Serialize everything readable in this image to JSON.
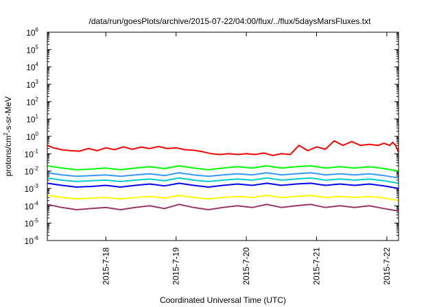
{
  "chart_data": {
    "type": "line",
    "title": "/data/run/goesPlots/archive/2015-07-22/04:00/flux/../flux/5daysMarsFluxes.txt",
    "xlabel": "Coordinated Universal Time (UTC)",
    "ylabel": {
      "prefix": "protons/cm",
      "superscript": "2",
      "suffix": "-s-sr-MeV"
    },
    "y_scale": "log",
    "ylim": [
      1e-06,
      1000000.0
    ],
    "y_ticks": [
      {
        "value": 1e-06,
        "base": "10",
        "exp": "-6"
      },
      {
        "value": 1e-05,
        "base": "10",
        "exp": "-5"
      },
      {
        "value": 0.0001,
        "base": "10",
        "exp": "-4"
      },
      {
        "value": 0.001,
        "base": "10",
        "exp": "-3"
      },
      {
        "value": 0.01,
        "base": "10",
        "exp": "-2"
      },
      {
        "value": 0.1,
        "base": "10",
        "exp": "-1"
      },
      {
        "value": 1,
        "base": "10",
        "exp": "0"
      },
      {
        "value": 10,
        "base": "10",
        "exp": "1"
      },
      {
        "value": 100,
        "base": "10",
        "exp": "2"
      },
      {
        "value": 1000,
        "base": "10",
        "exp": "3"
      },
      {
        "value": 10000,
        "base": "10",
        "exp": "4"
      },
      {
        "value": 100000,
        "base": "10",
        "exp": "5"
      },
      {
        "value": 1000000,
        "base": "10",
        "exp": "6"
      }
    ],
    "xlim": [
      "2015-07-17 04:00",
      "2015-07-22 04:00"
    ],
    "x_ticks": [
      {
        "value": "2015-07-18 00:00",
        "label": "2015-7-18"
      },
      {
        "value": "2015-07-19 00:00",
        "label": "2015-7-19"
      },
      {
        "value": "2015-07-20 00:00",
        "label": "2015-7-20"
      },
      {
        "value": "2015-07-21 00:00",
        "label": "2015-7-21"
      },
      {
        "value": "2015-07-22 00:00",
        "label": "2015-7-22"
      }
    ],
    "grid": false,
    "legend": "none",
    "series": [
      {
        "color": "#ff0000",
        "points": [
          [
            "2015-07-17 04:00",
            0.3
          ],
          [
            "2015-07-17 06:00",
            0.22
          ],
          [
            "2015-07-17 09:00",
            0.17
          ],
          [
            "2015-07-17 12:00",
            0.15
          ],
          [
            "2015-07-17 15:00",
            0.14
          ],
          [
            "2015-07-17 18:00",
            0.2
          ],
          [
            "2015-07-17 21:00",
            0.15
          ],
          [
            "2015-07-18 00:00",
            0.22
          ],
          [
            "2015-07-18 03:00",
            0.17
          ],
          [
            "2015-07-18 06:00",
            0.25
          ],
          [
            "2015-07-18 09:00",
            0.18
          ],
          [
            "2015-07-18 12:00",
            0.24
          ],
          [
            "2015-07-18 15:00",
            0.2
          ],
          [
            "2015-07-18 18:00",
            0.26
          ],
          [
            "2015-07-18 21:00",
            0.2
          ],
          [
            "2015-07-19 00:00",
            0.22
          ],
          [
            "2015-07-19 03:00",
            0.17
          ],
          [
            "2015-07-19 06:00",
            0.16
          ],
          [
            "2015-07-19 09:00",
            0.13
          ],
          [
            "2015-07-19 12:00",
            0.1
          ],
          [
            "2015-07-19 15:00",
            0.09
          ],
          [
            "2015-07-19 18:00",
            0.1
          ],
          [
            "2015-07-19 21:00",
            0.09
          ],
          [
            "2015-07-20 00:00",
            0.1
          ],
          [
            "2015-07-20 03:00",
            0.09
          ],
          [
            "2015-07-20 06:00",
            0.11
          ],
          [
            "2015-07-20 09:00",
            0.08
          ],
          [
            "2015-07-20 12:00",
            0.1
          ],
          [
            "2015-07-20 15:00",
            0.09
          ],
          [
            "2015-07-20 18:00",
            0.3
          ],
          [
            "2015-07-20 21:00",
            0.15
          ],
          [
            "2015-07-21 00:00",
            0.25
          ],
          [
            "2015-07-21 03:00",
            0.18
          ],
          [
            "2015-07-21 06:00",
            0.55
          ],
          [
            "2015-07-21 09:00",
            0.3
          ],
          [
            "2015-07-21 12:00",
            0.5
          ],
          [
            "2015-07-21 15:00",
            0.3
          ],
          [
            "2015-07-21 18:00",
            0.35
          ],
          [
            "2015-07-21 21:00",
            0.3
          ],
          [
            "2015-07-21 23:00",
            0.4
          ],
          [
            "2015-07-22 01:00",
            0.3
          ],
          [
            "2015-07-22 02:00",
            0.45
          ],
          [
            "2015-07-22 03:00",
            0.3
          ],
          [
            "2015-07-22 04:00",
            0.12
          ]
        ]
      },
      {
        "color": "#00ff00",
        "points": [
          [
            "2015-07-17 04:00",
            0.02
          ],
          [
            "2015-07-17 09:00",
            0.015
          ],
          [
            "2015-07-17 14:00",
            0.012
          ],
          [
            "2015-07-17 19:00",
            0.013
          ],
          [
            "2015-07-18 00:00",
            0.015
          ],
          [
            "2015-07-18 05:00",
            0.012
          ],
          [
            "2015-07-18 10:00",
            0.015
          ],
          [
            "2015-07-18 15:00",
            0.018
          ],
          [
            "2015-07-18 20:00",
            0.014
          ],
          [
            "2015-07-19 01:00",
            0.02
          ],
          [
            "2015-07-19 06:00",
            0.015
          ],
          [
            "2015-07-19 11:00",
            0.012
          ],
          [
            "2015-07-19 16:00",
            0.015
          ],
          [
            "2015-07-19 21:00",
            0.018
          ],
          [
            "2015-07-20 02:00",
            0.015
          ],
          [
            "2015-07-20 07:00",
            0.02
          ],
          [
            "2015-07-20 12:00",
            0.015
          ],
          [
            "2015-07-20 17:00",
            0.018
          ],
          [
            "2015-07-20 22:00",
            0.02
          ],
          [
            "2015-07-21 03:00",
            0.015
          ],
          [
            "2015-07-21 08:00",
            0.018
          ],
          [
            "2015-07-21 13:00",
            0.015
          ],
          [
            "2015-07-21 18:00",
            0.018
          ],
          [
            "2015-07-21 23:00",
            0.014
          ],
          [
            "2015-07-22 04:00",
            0.01
          ]
        ]
      },
      {
        "color": "#3399ff",
        "points": [
          [
            "2015-07-17 04:00",
            0.008
          ],
          [
            "2015-07-17 09:00",
            0.006
          ],
          [
            "2015-07-17 14:00",
            0.005
          ],
          [
            "2015-07-17 19:00",
            0.0055
          ],
          [
            "2015-07-18 00:00",
            0.006
          ],
          [
            "2015-07-18 05:00",
            0.005
          ],
          [
            "2015-07-18 10:00",
            0.006
          ],
          [
            "2015-07-18 15:00",
            0.007
          ],
          [
            "2015-07-18 20:00",
            0.0055
          ],
          [
            "2015-07-19 01:00",
            0.008
          ],
          [
            "2015-07-19 06:00",
            0.006
          ],
          [
            "2015-07-19 11:00",
            0.005
          ],
          [
            "2015-07-19 16:00",
            0.006
          ],
          [
            "2015-07-19 21:00",
            0.007
          ],
          [
            "2015-07-20 02:00",
            0.006
          ],
          [
            "2015-07-20 07:00",
            0.008
          ],
          [
            "2015-07-20 12:00",
            0.006
          ],
          [
            "2015-07-20 17:00",
            0.007
          ],
          [
            "2015-07-20 22:00",
            0.008
          ],
          [
            "2015-07-21 03:00",
            0.006
          ],
          [
            "2015-07-21 08:00",
            0.007
          ],
          [
            "2015-07-21 13:00",
            0.006
          ],
          [
            "2015-07-21 18:00",
            0.007
          ],
          [
            "2015-07-21 23:00",
            0.0055
          ],
          [
            "2015-07-22 04:00",
            0.004
          ]
        ]
      },
      {
        "color": "#00cccc",
        "points": [
          [
            "2015-07-17 04:00",
            0.004
          ],
          [
            "2015-07-17 09:00",
            0.003
          ],
          [
            "2015-07-17 14:00",
            0.0025
          ],
          [
            "2015-07-17 19:00",
            0.0028
          ],
          [
            "2015-07-18 00:00",
            0.003
          ],
          [
            "2015-07-18 05:00",
            0.0025
          ],
          [
            "2015-07-18 10:00",
            0.003
          ],
          [
            "2015-07-18 15:00",
            0.0035
          ],
          [
            "2015-07-18 20:00",
            0.0028
          ],
          [
            "2015-07-19 01:00",
            0.004
          ],
          [
            "2015-07-19 06:00",
            0.003
          ],
          [
            "2015-07-19 11:00",
            0.0025
          ],
          [
            "2015-07-19 16:00",
            0.003
          ],
          [
            "2015-07-19 21:00",
            0.0035
          ],
          [
            "2015-07-20 02:00",
            0.003
          ],
          [
            "2015-07-20 07:00",
            0.004
          ],
          [
            "2015-07-20 12:00",
            0.003
          ],
          [
            "2015-07-20 17:00",
            0.0035
          ],
          [
            "2015-07-20 22:00",
            0.004
          ],
          [
            "2015-07-21 03:00",
            0.003
          ],
          [
            "2015-07-21 08:00",
            0.0035
          ],
          [
            "2015-07-21 13:00",
            0.003
          ],
          [
            "2015-07-21 18:00",
            0.0035
          ],
          [
            "2015-07-21 23:00",
            0.0028
          ],
          [
            "2015-07-22 04:00",
            0.002
          ]
        ]
      },
      {
        "color": "#0000ff",
        "points": [
          [
            "2015-07-17 04:00",
            0.002
          ],
          [
            "2015-07-17 09:00",
            0.0015
          ],
          [
            "2015-07-17 14:00",
            0.0012
          ],
          [
            "2015-07-17 19:00",
            0.0013
          ],
          [
            "2015-07-18 00:00",
            0.0015
          ],
          [
            "2015-07-18 05:00",
            0.0012
          ],
          [
            "2015-07-18 10:00",
            0.0015
          ],
          [
            "2015-07-18 15:00",
            0.0018
          ],
          [
            "2015-07-18 20:00",
            0.0014
          ],
          [
            "2015-07-19 01:00",
            0.002
          ],
          [
            "2015-07-19 06:00",
            0.0015
          ],
          [
            "2015-07-19 11:00",
            0.0012
          ],
          [
            "2015-07-19 16:00",
            0.0015
          ],
          [
            "2015-07-19 21:00",
            0.0018
          ],
          [
            "2015-07-20 02:00",
            0.0015
          ],
          [
            "2015-07-20 07:00",
            0.002
          ],
          [
            "2015-07-20 12:00",
            0.0015
          ],
          [
            "2015-07-20 17:00",
            0.0018
          ],
          [
            "2015-07-20 22:00",
            0.002
          ],
          [
            "2015-07-21 03:00",
            0.0015
          ],
          [
            "2015-07-21 08:00",
            0.0018
          ],
          [
            "2015-07-21 13:00",
            0.0015
          ],
          [
            "2015-07-21 18:00",
            0.0018
          ],
          [
            "2015-07-21 23:00",
            0.0014
          ],
          [
            "2015-07-22 04:00",
            0.001
          ]
        ]
      },
      {
        "color": "#ffff00",
        "points": [
          [
            "2015-07-17 04:00",
            0.0004
          ],
          [
            "2015-07-17 09:00",
            0.0003
          ],
          [
            "2015-07-17 14:00",
            0.00025
          ],
          [
            "2015-07-17 19:00",
            0.00028
          ],
          [
            "2015-07-18 00:00",
            0.0003
          ],
          [
            "2015-07-18 05:00",
            0.00025
          ],
          [
            "2015-07-18 10:00",
            0.0003
          ],
          [
            "2015-07-18 15:00",
            0.00035
          ],
          [
            "2015-07-18 20:00",
            0.00028
          ],
          [
            "2015-07-19 01:00",
            0.0004
          ],
          [
            "2015-07-19 06:00",
            0.0003
          ],
          [
            "2015-07-19 11:00",
            0.00025
          ],
          [
            "2015-07-19 16:00",
            0.0003
          ],
          [
            "2015-07-19 21:00",
            0.00035
          ],
          [
            "2015-07-20 02:00",
            0.0003
          ],
          [
            "2015-07-20 07:00",
            0.0004
          ],
          [
            "2015-07-20 12:00",
            0.0003
          ],
          [
            "2015-07-20 17:00",
            0.00035
          ],
          [
            "2015-07-20 22:00",
            0.0004
          ],
          [
            "2015-07-21 03:00",
            0.0003
          ],
          [
            "2015-07-21 08:00",
            0.00035
          ],
          [
            "2015-07-21 13:00",
            0.0003
          ],
          [
            "2015-07-21 18:00",
            0.00035
          ],
          [
            "2015-07-21 23:00",
            0.00028
          ],
          [
            "2015-07-22 04:00",
            0.0002
          ]
        ]
      },
      {
        "color": "#993366",
        "points": [
          [
            "2015-07-17 04:00",
            0.00012
          ],
          [
            "2015-07-17 09:00",
            8e-05
          ],
          [
            "2015-07-17 14:00",
            6e-05
          ],
          [
            "2015-07-17 19:00",
            7e-05
          ],
          [
            "2015-07-18 00:00",
            8e-05
          ],
          [
            "2015-07-18 05:00",
            6e-05
          ],
          [
            "2015-07-18 10:00",
            8e-05
          ],
          [
            "2015-07-18 15:00",
            0.0001
          ],
          [
            "2015-07-18 20:00",
            7e-05
          ],
          [
            "2015-07-19 01:00",
            0.00012
          ],
          [
            "2015-07-19 06:00",
            8e-05
          ],
          [
            "2015-07-19 11:00",
            6e-05
          ],
          [
            "2015-07-19 16:00",
            8e-05
          ],
          [
            "2015-07-19 21:00",
            0.0001
          ],
          [
            "2015-07-20 02:00",
            8e-05
          ],
          [
            "2015-07-20 07:00",
            0.00012
          ],
          [
            "2015-07-20 12:00",
            8e-05
          ],
          [
            "2015-07-20 17:00",
            0.0001
          ],
          [
            "2015-07-20 22:00",
            0.00012
          ],
          [
            "2015-07-21 03:00",
            8e-05
          ],
          [
            "2015-07-21 08:00",
            0.0001
          ],
          [
            "2015-07-21 13:00",
            8e-05
          ],
          [
            "2015-07-21 18:00",
            0.0001
          ],
          [
            "2015-07-21 23:00",
            7e-05
          ],
          [
            "2015-07-22 04:00",
            5e-05
          ]
        ]
      }
    ]
  }
}
